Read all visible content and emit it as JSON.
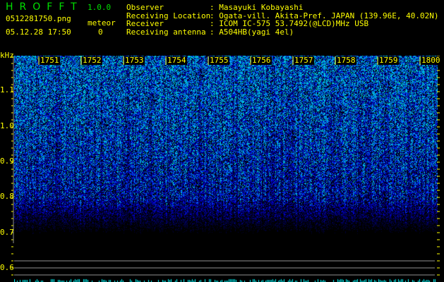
{
  "header": {
    "app_title": "HROFFT",
    "version": "1.0.0",
    "filename": "0512281750.png",
    "meteor_label": "meteor",
    "datetime": "05.12.28 17:50",
    "meteor_count": "0"
  },
  "info": [
    {
      "key": "Observer",
      "value": ": Masayuki Kobayashi"
    },
    {
      "key": "Receiving Location",
      "value": ": Ogata-vill. Akita-Pref. JAPAN (139.96E, 40.02N)"
    },
    {
      "key": "Receiver",
      "value": ": ICOM IC-575 53.7492(@LCD)MHz USB"
    },
    {
      "key": "Receiving antenna",
      "value": ": A504HB(yagi 4el)"
    }
  ],
  "axis": {
    "y_unit": "kHz",
    "y_ticks": [
      "1.1",
      "1.0",
      "0.9",
      "0.8",
      "0.7",
      "0.6"
    ],
    "time_ticks": [
      "1751",
      "1752",
      "1753",
      "1754",
      "1755",
      "1756",
      "1757",
      "1758",
      "1759",
      "1800"
    ]
  },
  "colors": {
    "text": "#ffff00",
    "title": "#00e000",
    "signal": "#0000ff",
    "peak": "#00ffff",
    "guide_lines": "#909090"
  }
}
